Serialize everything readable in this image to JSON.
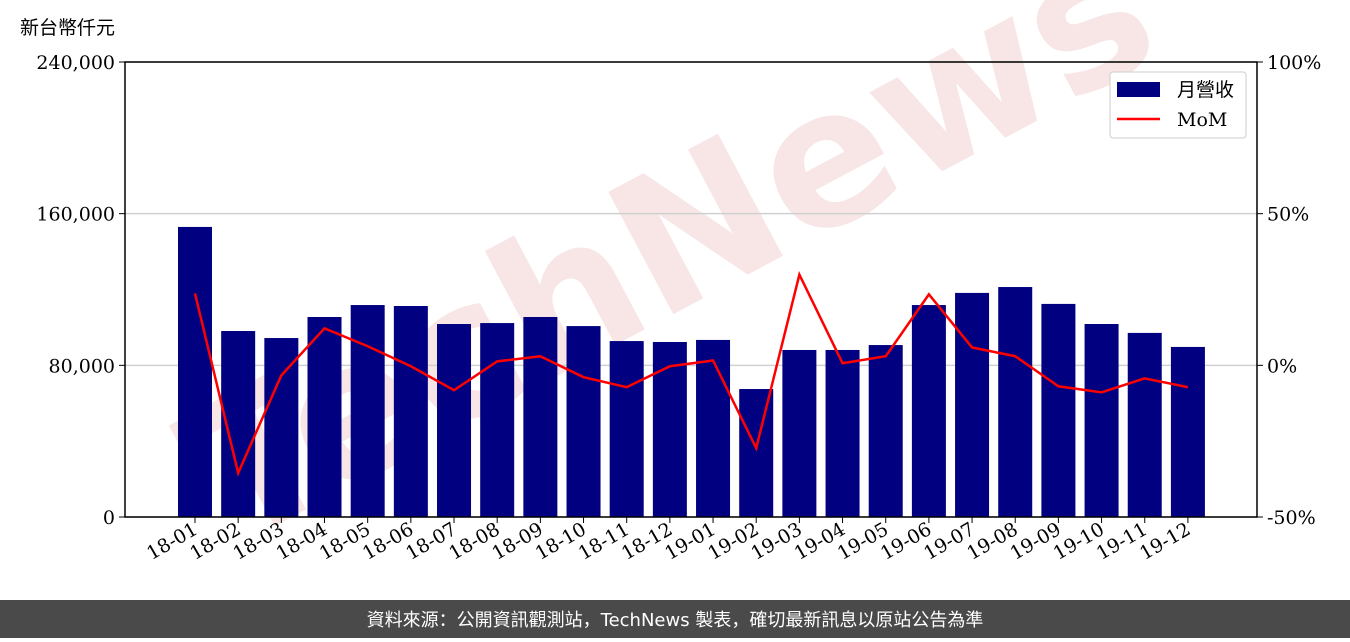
{
  "chart_data": {
    "type": "bar",
    "y_label": "新台幣仟元",
    "watermark": "TechNews",
    "footer": "資料來源：公開資訊觀測站，TechNews 製表，確切最新訊息以原站公告為準",
    "categories": [
      "18-01",
      "18-02",
      "18-03",
      "18-04",
      "18-05",
      "18-06",
      "18-07",
      "18-08",
      "18-09",
      "18-10",
      "18-11",
      "18-12",
      "19-01",
      "19-02",
      "19-03",
      "19-04",
      "19-05",
      "19-06",
      "19-07",
      "19-08",
      "19-09",
      "19-10",
      "19-11",
      "19-12"
    ],
    "series": [
      {
        "name": "月營收",
        "type": "bar",
        "color": "#000080",
        "values": [
          153000,
          98100,
          94400,
          105500,
          111800,
          111300,
          101800,
          102300,
          105500,
          100700,
          92800,
          92300,
          93400,
          67500,
          88100,
          88100,
          90700,
          111800,
          118200,
          121300,
          112400,
          101800,
          97100,
          89700
        ]
      },
      {
        "name": "MoM",
        "type": "line",
        "axis": "y2",
        "color": "#ff0000",
        "values": [
          23.7,
          -35.5,
          -3.3,
          12.2,
          6.3,
          -0.3,
          -8.2,
          1.3,
          3.0,
          -3.9,
          -7.2,
          -0.3,
          1.6,
          -27.3,
          29.9,
          0.7,
          3.0,
          23.4,
          5.9,
          3.0,
          -6.9,
          -8.9,
          -4.3,
          -7.2
        ]
      }
    ],
    "ylim": [
      0,
      240000
    ],
    "yticks": [
      0,
      {
        "value": 80000,
        "label": "80,000"
      },
      {
        "value": 160000,
        "label": "160,000"
      },
      {
        "value": 240000,
        "label": "240,000"
      }
    ],
    "y2lim": [
      -50,
      100
    ],
    "y2ticks": [
      {
        "value": -50,
        "label": "-50%"
      },
      {
        "value": 0,
        "label": "0%"
      },
      {
        "value": 50,
        "label": "50%"
      },
      {
        "value": 100,
        "label": "100%"
      }
    ],
    "grid": true,
    "legend": "upper right"
  }
}
